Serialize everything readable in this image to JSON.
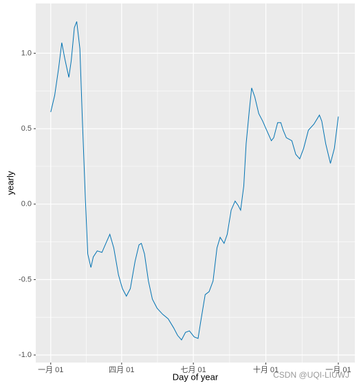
{
  "chart_data": {
    "type": "line",
    "x_label": "Day of year",
    "y_label": "yearly",
    "watermark": "CSDN @UQI-LIUWJ",
    "x": [
      0,
      5,
      10,
      14,
      18,
      23,
      26,
      30,
      33,
      37,
      40,
      44,
      47,
      51,
      54,
      59,
      65,
      70,
      75,
      80,
      86,
      91,
      96,
      101,
      107,
      112,
      115,
      119,
      124,
      129,
      135,
      142,
      149,
      156,
      161,
      166,
      171,
      176,
      182,
      187,
      190,
      196,
      201,
      206,
      211,
      215,
      220,
      224,
      229,
      234,
      238,
      241,
      245,
      248,
      252,
      255,
      259,
      264,
      269,
      274,
      280,
      283,
      288,
      292,
      295,
      299,
      306,
      311,
      316,
      321,
      327,
      334,
      341,
      344,
      349,
      355,
      360,
      365
    ],
    "series": [
      {
        "name": "yearly",
        "color": "#0072b2",
        "values": [
          0.61,
          0.72,
          0.9,
          1.07,
          0.96,
          0.84,
          0.95,
          1.17,
          1.21,
          1.03,
          0.58,
          0.03,
          -0.33,
          -0.42,
          -0.35,
          -0.31,
          -0.32,
          -0.26,
          -0.2,
          -0.29,
          -0.47,
          -0.56,
          -0.61,
          -0.56,
          -0.38,
          -0.27,
          -0.26,
          -0.33,
          -0.51,
          -0.63,
          -0.69,
          -0.73,
          -0.76,
          -0.82,
          -0.87,
          -0.9,
          -0.85,
          -0.84,
          -0.88,
          -0.89,
          -0.79,
          -0.6,
          -0.58,
          -0.51,
          -0.29,
          -0.22,
          -0.26,
          -0.2,
          -0.04,
          0.02,
          -0.01,
          -0.04,
          0.12,
          0.4,
          0.62,
          0.77,
          0.71,
          0.6,
          0.55,
          0.49,
          0.42,
          0.44,
          0.54,
          0.54,
          0.49,
          0.44,
          0.42,
          0.33,
          0.3,
          0.37,
          0.49,
          0.53,
          0.59,
          0.55,
          0.4,
          0.27,
          0.37,
          0.58
        ]
      }
    ],
    "xlim": [
      -19,
      386
    ],
    "xticks": [
      {
        "value": 0,
        "label": "一月 01"
      },
      {
        "value": 90,
        "label": "四月 01"
      },
      {
        "value": 181,
        "label": "七月 01"
      },
      {
        "value": 273,
        "label": "十月 01"
      },
      {
        "value": 365,
        "label": "一月 01"
      }
    ],
    "ylim": [
      -1.05,
      1.33
    ],
    "yticks": [
      {
        "value": -1,
        "label": "-1.0"
      },
      {
        "value": -0.5,
        "label": "-0.5"
      },
      {
        "value": 0,
        "label": "0.0"
      },
      {
        "value": 0.5,
        "label": "0.5"
      },
      {
        "value": 1,
        "label": "1.0"
      }
    ],
    "grid": true,
    "minor_grid": true,
    "panel_color": "#ebebeb"
  }
}
